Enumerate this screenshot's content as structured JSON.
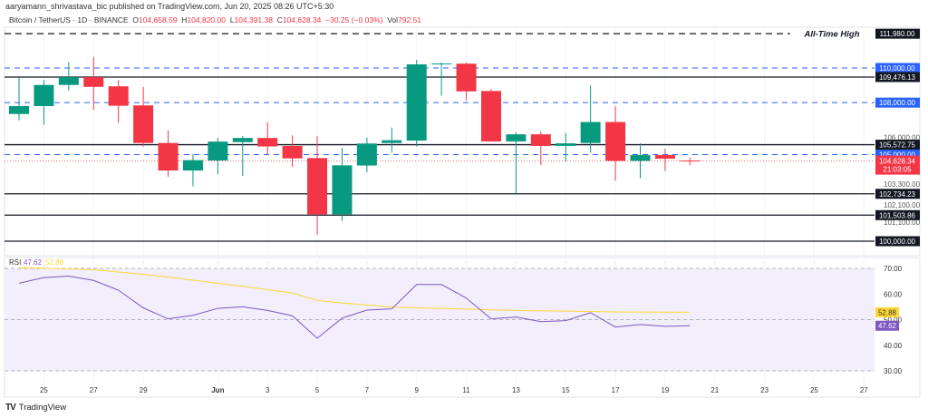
{
  "publisher_line": "aaryamann_shrivastava_bic published on TradingView.com, Jun 20, 2025 08:26 UTC+5:30",
  "legend": {
    "symbol": "Bitcoin / TetherUS · 1D · BINANCE",
    "o_label": "O",
    "o": "104,658.59",
    "h_label": "H",
    "h": "104,820.00",
    "l_label": "L",
    "l": "104,391.38",
    "c_label": "C",
    "c": "104,628.34",
    "change": "−30.25 (−0.03%)",
    "vol_label": "Vol",
    "vol": "792.51"
  },
  "colors": {
    "up": "#089981",
    "down": "#f23645",
    "level_blue": "#2962ff",
    "level_black": "#131722",
    "rsi": "#7e57c2",
    "rsi_ma": "#fdd835",
    "rsi_band": "#f3eefb"
  },
  "footer": {
    "brand": "TradingView"
  },
  "chart_data": [
    {
      "type": "candlestick",
      "title": "Bitcoin / TetherUS · 1D · BINANCE",
      "x": [
        "May 24",
        "May 25",
        "May 26",
        "May 27",
        "May 28",
        "May 29",
        "May 30",
        "May 31",
        "Jun 1",
        "Jun 2",
        "Jun 3",
        "Jun 4",
        "Jun 5",
        "Jun 6",
        "Jun 7",
        "Jun 8",
        "Jun 9",
        "Jun 10",
        "Jun 11",
        "Jun 12",
        "Jun 13",
        "Jun 14",
        "Jun 15",
        "Jun 16",
        "Jun 17",
        "Jun 18",
        "Jun 19",
        "Jun 20"
      ],
      "ohlc": [
        [
          107345,
          109440,
          106980,
          107800
        ],
        [
          107800,
          109310,
          106720,
          109020
        ],
        [
          109020,
          110350,
          108690,
          109470
        ],
        [
          109470,
          110640,
          107590,
          108910
        ],
        [
          108940,
          109310,
          106830,
          107820
        ],
        [
          107840,
          108900,
          105460,
          105670
        ],
        [
          105670,
          106390,
          103720,
          104080
        ],
        [
          104080,
          105030,
          103160,
          104680
        ],
        [
          104660,
          105960,
          103870,
          105750
        ],
        [
          105720,
          106070,
          103770,
          105960
        ],
        [
          105960,
          106860,
          105030,
          105470
        ],
        [
          105500,
          106110,
          104290,
          104780
        ],
        [
          104800,
          106060,
          100380,
          101550
        ],
        [
          101550,
          105390,
          101170,
          104380
        ],
        [
          104370,
          105980,
          103980,
          105640
        ],
        [
          105670,
          106560,
          105110,
          105830
        ],
        [
          105810,
          110470,
          105460,
          110210
        ],
        [
          110210,
          110310,
          108390,
          110260
        ],
        [
          110250,
          110310,
          108130,
          108650
        ],
        [
          108670,
          108780,
          105760,
          105760
        ],
        [
          105760,
          106280,
          102760,
          106170
        ],
        [
          106170,
          106330,
          104400,
          105500
        ],
        [
          105500,
          106250,
          104590,
          105650
        ],
        [
          105670,
          108990,
          105110,
          106880
        ],
        [
          106880,
          107790,
          103490,
          104640
        ],
        [
          104640,
          105650,
          103640,
          104970
        ],
        [
          104970,
          105340,
          104050,
          104760
        ],
        [
          104658.59,
          104820,
          104391.38,
          104628.34
        ]
      ],
      "ylim": [
        99500,
        112500
      ],
      "x_ticks": [
        "25",
        "27",
        "29",
        "Jun",
        "3",
        "5",
        "7",
        "9",
        "11",
        "13",
        "15",
        "17",
        "19",
        "21",
        "23",
        "25",
        "27"
      ],
      "y_axis_labels": [
        "103,300.00",
        "102,100.00",
        "101,100.00",
        "106,000.00"
      ],
      "levels": [
        {
          "price": 111980,
          "label": "111,980.00",
          "style": "dashed-black",
          "annotation": "All-Time High"
        },
        {
          "price": 110000,
          "label": "110,000.00",
          "style": "dashed-blue"
        },
        {
          "price": 109476.13,
          "label": "109,476.13",
          "style": "solid-black"
        },
        {
          "price": 108000,
          "label": "108,000.00",
          "style": "dashed-blue"
        },
        {
          "price": 105572.75,
          "label": "105,572.75",
          "style": "solid-black"
        },
        {
          "price": 105000,
          "label": "105,000.00",
          "style": "dashed-blue"
        },
        {
          "price": 102734.23,
          "label": "102,734.23",
          "style": "solid-black"
        },
        {
          "price": 101503.86,
          "label": "101,503.86",
          "style": "solid-black"
        },
        {
          "price": 100000,
          "label": "100,000.00",
          "style": "solid-black"
        }
      ],
      "last_price": {
        "price": 104628.34,
        "label": "104,628.34",
        "countdown": "21:03:05"
      },
      "grid": true
    },
    {
      "type": "line",
      "title": "RSI",
      "legend": [
        {
          "name": "RSI",
          "value": "47.62"
        },
        {
          "value": "52.88"
        }
      ],
      "series": [
        {
          "name": "RSI",
          "values": [
            64.2,
            66.4,
            67.0,
            65.3,
            61.5,
            54.6,
            50.3,
            51.7,
            54.4,
            55.0,
            53.6,
            51.5,
            42.7,
            50.6,
            53.7,
            54.2,
            63.7,
            63.7,
            58.4,
            50.3,
            51.0,
            49.2,
            49.6,
            52.7,
            47.1,
            48.1,
            47.4,
            47.62
          ]
        },
        {
          "values": [
            70.3,
            70.1,
            69.8,
            69.5,
            68.6,
            67.7,
            66.6,
            65.4,
            64.2,
            63.0,
            61.7,
            60.4,
            57.5,
            56.5,
            55.7,
            54.9,
            54.6,
            54.4,
            54.1,
            53.8,
            53.6,
            53.4,
            53.3,
            53.2,
            53.0,
            52.95,
            52.9,
            52.88
          ]
        }
      ],
      "ylim": [
        28,
        72
      ],
      "y_ticks": [
        "70.00",
        "60.00",
        "50.00",
        "40.00",
        "30.00"
      ],
      "bands": [
        30,
        50,
        70
      ],
      "last_labels": {
        "rsi": "47.62",
        "ma": "52.88"
      }
    }
  ]
}
